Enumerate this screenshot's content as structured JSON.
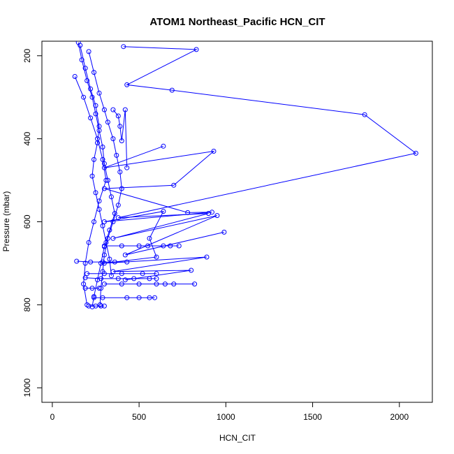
{
  "chart_data": {
    "type": "line",
    "title": "ATOM1 Northeast_Pacific HCN_CIT",
    "xlabel": "HCN_CIT",
    "ylabel": "Pressure (mbar)",
    "xlim": [
      -60,
      2190
    ],
    "ylim": [
      1035,
      165
    ],
    "y_reversed": true,
    "x_ticks": [
      0,
      500,
      1000,
      1500,
      2000
    ],
    "y_ticks": [
      200,
      400,
      600,
      800,
      1000
    ],
    "grid": false,
    "marker": "open-circle",
    "line_color": "#0000ff",
    "series": [
      {
        "points": [
          [
            150,
            168
          ],
          [
            170,
            210
          ],
          [
            200,
            260
          ],
          [
            230,
            300
          ],
          [
            250,
            340
          ],
          [
            270,
            380
          ],
          [
            290,
            420
          ],
          [
            300,
            460
          ],
          [
            320,
            500
          ],
          [
            340,
            540
          ],
          [
            360,
            580
          ],
          [
            330,
            620
          ],
          [
            300,
            660
          ],
          [
            280,
            700
          ],
          [
            260,
            740
          ],
          [
            240,
            780
          ],
          [
            230,
            805
          ]
        ]
      },
      {
        "points": [
          [
            210,
            190
          ],
          [
            240,
            240
          ],
          [
            270,
            290
          ],
          [
            300,
            330
          ],
          [
            320,
            360
          ],
          [
            350,
            400
          ],
          [
            370,
            440
          ],
          [
            390,
            480
          ],
          [
            400,
            520
          ],
          [
            380,
            560
          ],
          [
            350,
            600
          ],
          [
            320,
            640
          ],
          [
            300,
            680
          ],
          [
            290,
            720
          ],
          [
            280,
            760
          ],
          [
            275,
            800
          ]
        ]
      },
      {
        "points": [
          [
            160,
            175
          ],
          [
            190,
            230
          ],
          [
            220,
            280
          ],
          [
            250,
            320
          ],
          [
            270,
            370
          ],
          [
            260,
            410
          ],
          [
            240,
            450
          ],
          [
            230,
            490
          ],
          [
            250,
            530
          ],
          [
            270,
            570
          ],
          [
            290,
            610
          ],
          [
            310,
            650
          ],
          [
            330,
            690
          ],
          [
            340,
            730
          ]
        ]
      },
      {
        "points": [
          [
            410,
            178
          ],
          [
            830,
            185
          ],
          [
            430,
            270
          ],
          [
            690,
            283
          ],
          [
            1800,
            342
          ],
          [
            2095,
            435
          ],
          [
            380,
            590
          ],
          [
            900,
            580
          ],
          [
            350,
            640
          ],
          [
            950,
            585
          ],
          [
            420,
            680
          ],
          [
            990,
            625
          ]
        ]
      },
      {
        "points": [
          [
            640,
            418
          ],
          [
            300,
            470
          ],
          [
            930,
            430
          ],
          [
            700,
            512
          ],
          [
            300,
            520
          ],
          [
            780,
            578
          ],
          [
            920,
            577
          ],
          [
            300,
            600
          ],
          [
            640,
            575
          ],
          [
            560,
            640
          ],
          [
            600,
            685
          ],
          [
            300,
            700
          ],
          [
            890,
            685
          ],
          [
            350,
            720
          ],
          [
            800,
            717
          ],
          [
            420,
            740
          ]
        ]
      },
      {
        "points": [
          [
            130,
            250
          ],
          [
            180,
            300
          ],
          [
            220,
            350
          ],
          [
            260,
            400
          ],
          [
            290,
            450
          ],
          [
            310,
            500
          ],
          [
            270,
            550
          ],
          [
            240,
            600
          ],
          [
            210,
            650
          ],
          [
            190,
            700
          ],
          [
            180,
            750
          ],
          [
            200,
            800
          ]
        ]
      },
      {
        "points": [
          [
            140,
            695
          ],
          [
            220,
            697
          ],
          [
            290,
            697
          ],
          [
            360,
            697
          ],
          [
            430,
            697
          ]
        ]
      },
      {
        "points": [
          [
            200,
            725
          ],
          [
            300,
            725
          ],
          [
            400,
            725
          ],
          [
            520,
            725
          ],
          [
            600,
            725
          ]
        ]
      },
      {
        "points": [
          [
            300,
            750
          ],
          [
            400,
            750
          ],
          [
            500,
            750
          ],
          [
            600,
            750
          ],
          [
            650,
            750
          ],
          [
            700,
            750
          ],
          [
            820,
            750
          ]
        ]
      },
      {
        "points": [
          [
            190,
            735
          ],
          [
            280,
            737
          ],
          [
            380,
            737
          ],
          [
            470,
            737
          ],
          [
            560,
            737
          ],
          [
            600,
            737
          ]
        ]
      },
      {
        "points": [
          [
            300,
            658
          ],
          [
            400,
            658
          ],
          [
            500,
            658
          ],
          [
            550,
            658
          ],
          [
            640,
            658
          ],
          [
            680,
            658
          ],
          [
            730,
            658
          ]
        ]
      },
      {
        "points": [
          [
            190,
            760
          ],
          [
            230,
            760
          ],
          [
            270,
            760
          ]
        ]
      },
      {
        "points": [
          [
            240,
            783
          ],
          [
            290,
            783
          ],
          [
            430,
            783
          ],
          [
            500,
            783
          ],
          [
            560,
            783
          ],
          [
            590,
            783
          ]
        ]
      },
      {
        "points": [
          [
            210,
            803
          ],
          [
            250,
            803
          ],
          [
            280,
            803
          ],
          [
            300,
            803
          ]
        ]
      },
      {
        "points": [
          [
            350,
            330
          ],
          [
            380,
            345
          ],
          [
            390,
            370
          ],
          [
            400,
            405
          ],
          [
            420,
            330
          ],
          [
            430,
            470
          ]
        ]
      }
    ]
  }
}
